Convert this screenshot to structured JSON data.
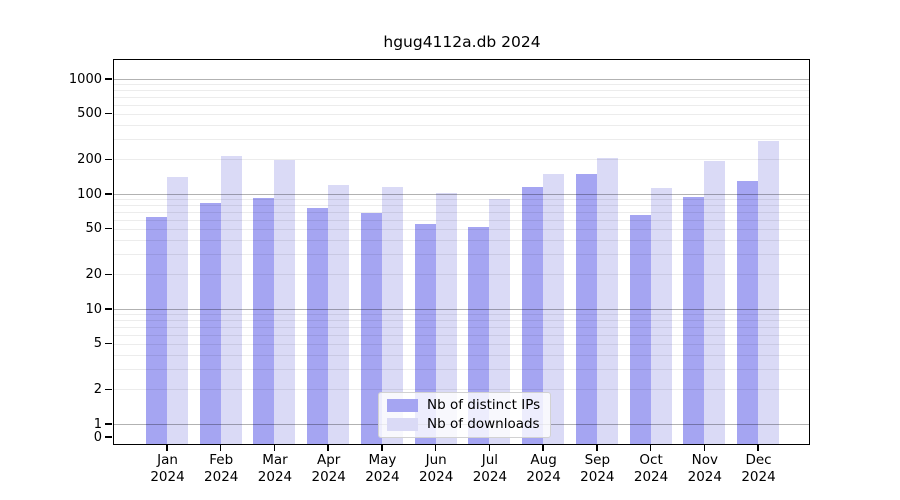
{
  "chart_data": {
    "type": "bar",
    "title": "hgug4112a.db 2024",
    "categories": [
      "Jan 2024",
      "Feb 2024",
      "Mar 2024",
      "Apr 2024",
      "May 2024",
      "Jun 2024",
      "Jul 2024",
      "Aug 2024",
      "Sep 2024",
      "Oct 2024",
      "Nov 2024",
      "Dec 2024"
    ],
    "series": [
      {
        "name": "Nb of distinct IPs",
        "key": "distinct-ips",
        "color": "#a5a5f2",
        "values": [
          63,
          84,
          92,
          75,
          68,
          55,
          52,
          114,
          150,
          66,
          94,
          130
        ]
      },
      {
        "name": "Nb of downloads",
        "key": "downloads",
        "color": "#dadaf6",
        "values": [
          140,
          215,
          198,
          120,
          114,
          102,
          91,
          150,
          205,
          113,
          195,
          290
        ]
      }
    ],
    "y_axis": {
      "scale": "log",
      "ticks": [
        0,
        1,
        2,
        5,
        10,
        20,
        50,
        100,
        200,
        500,
        1000
      ],
      "range": [
        0,
        1000
      ]
    },
    "grid": true,
    "legend_position": "bottom-center",
    "colors": {
      "frame": "#000000",
      "grid_minor": "#ececec",
      "grid_major": "#b3b3b3",
      "background": "#ffffff"
    }
  }
}
